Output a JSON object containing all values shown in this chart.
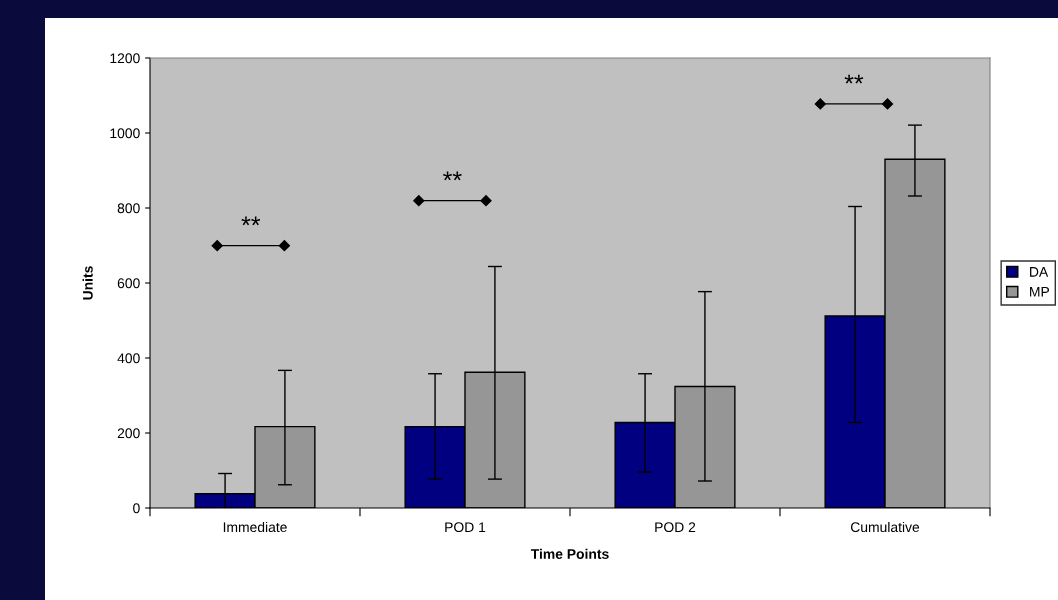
{
  "chart_data": {
    "type": "bar",
    "categories": [
      "Immediate",
      "POD 1",
      "POD 2",
      "Cumulative"
    ],
    "xlabel": "Time Points",
    "ylabel": "Units",
    "series": [
      {
        "name": "DA",
        "color": "#000080",
        "values": [
          38,
          217,
          228,
          512
        ],
        "errors": [
          [
            0,
            92
          ],
          [
            77,
            358
          ],
          [
            96,
            358
          ],
          [
            228,
            804
          ]
        ]
      },
      {
        "name": "MP",
        "color": "#969696",
        "values": [
          217,
          362,
          324,
          930
        ],
        "errors": [
          [
            62,
            367
          ],
          [
            77,
            644
          ],
          [
            72,
            577
          ],
          [
            832,
            1021
          ]
        ]
      }
    ],
    "annotations": [
      "**",
      "**",
      "**"
    ],
    "ylim": [
      0,
      1200
    ],
    "yticks": [
      0,
      200,
      400,
      600,
      800,
      1000,
      1200
    ],
    "grid": false,
    "legend": "right"
  }
}
